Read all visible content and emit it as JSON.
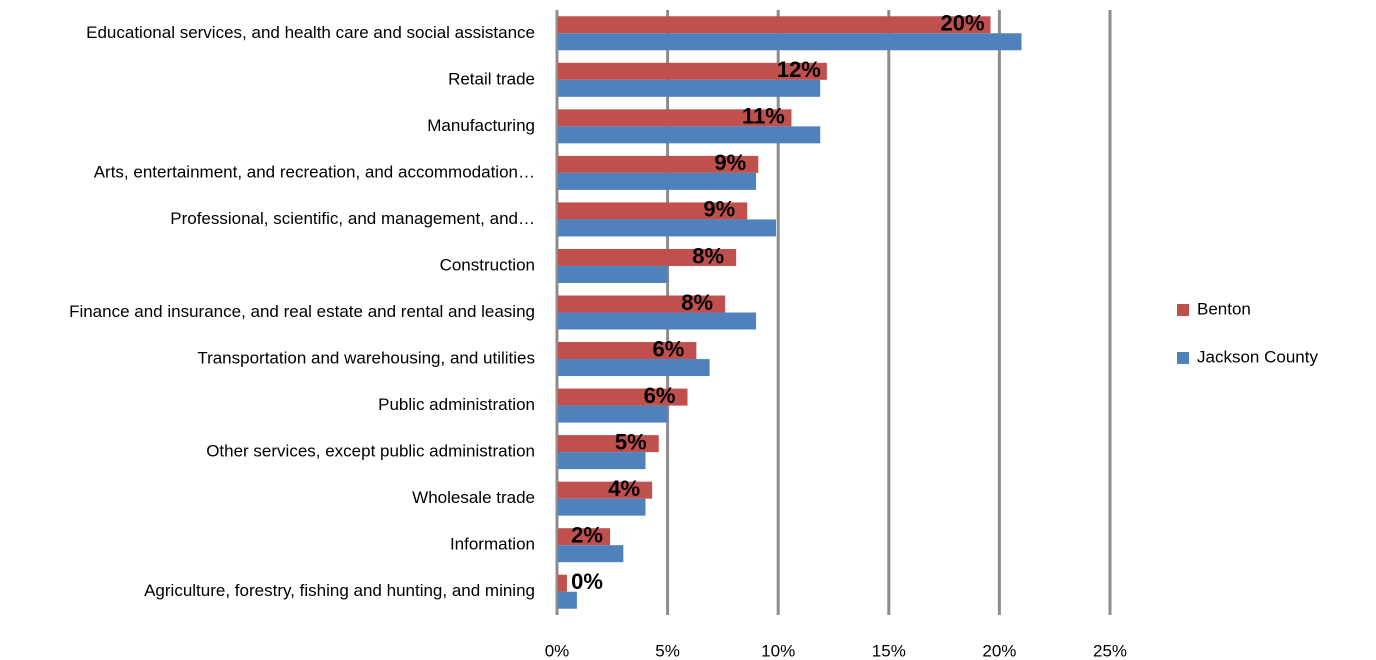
{
  "chart_data": {
    "type": "bar",
    "orientation": "horizontal",
    "categories": [
      "Educational services, and health care and social assistance",
      "Retail trade",
      "Manufacturing",
      "Arts, entertainment, and recreation, and accommodation…",
      "Professional, scientific, and management, and…",
      "Construction",
      "Finance and insurance, and real estate and rental and leasing",
      "Transportation and warehousing, and utilities",
      "Public administration",
      "Other services, except public administration",
      "Wholesale trade",
      "Information",
      "Agriculture, forestry, fishing and hunting, and mining"
    ],
    "series": [
      {
        "name": "Benton",
        "color": "#c0504d",
        "values": [
          19.6,
          12.2,
          10.6,
          9.1,
          8.6,
          8.1,
          7.6,
          6.3,
          5.9,
          4.6,
          4.3,
          2.4,
          0.45
        ],
        "value_labels": [
          "20%",
          "12%",
          "11%",
          "9%",
          "9%",
          "8%",
          "8%",
          "6%",
          "6%",
          "5%",
          "4%",
          "2%",
          "0%"
        ]
      },
      {
        "name": "Jackson County",
        "color": "#4f81bd",
        "values": [
          21.0,
          11.9,
          11.9,
          9.0,
          9.9,
          5.0,
          9.0,
          6.9,
          5.0,
          4.0,
          4.0,
          3.0,
          0.9
        ]
      }
    ],
    "xlim": [
      0,
      25
    ],
    "xticks": [
      {
        "value": 0,
        "label": "0%"
      },
      {
        "value": 5,
        "label": "5%"
      },
      {
        "value": 10,
        "label": "10%"
      },
      {
        "value": 15,
        "label": "15%"
      },
      {
        "value": 20,
        "label": "20%"
      },
      {
        "value": 25,
        "label": "25%"
      }
    ],
    "grid": true,
    "legend": "right"
  }
}
